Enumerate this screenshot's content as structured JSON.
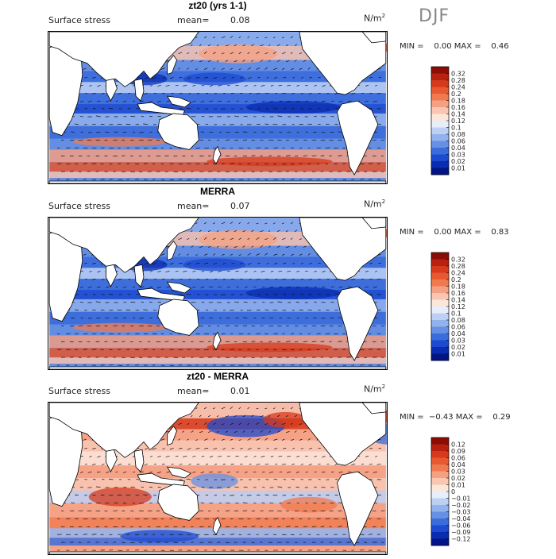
{
  "season": "DJF",
  "field_label": "Surface stress",
  "units": "N/m",
  "units_exp": "2",
  "mean_label": "mean=",
  "panels": [
    {
      "title": "zt20 (yrs 1-1)",
      "mean": "0.08",
      "minmax": "MIN =    0.00 MAX =    0.46",
      "colorbar": [
        "0.32",
        "0.28",
        "0.24",
        "0.2",
        "0.18",
        "0.16",
        "0.14",
        "0.12",
        "0.1",
        "0.08",
        "0.06",
        "0.04",
        "0.03",
        "0.02",
        "0.01"
      ],
      "colorbar_colors": [
        "#8c0c06",
        "#b8200f",
        "#d6391c",
        "#e8592f",
        "#f07a4f",
        "#f5a082",
        "#f9c6b1",
        "#fbe6da",
        "#e7eefa",
        "#bcd0f4",
        "#92b2ec",
        "#6690e3",
        "#3b6cdb",
        "#1c4ad0",
        "#0a2cb0",
        "#031486"
      ],
      "map_base": "#5a83e0",
      "variant": "model"
    },
    {
      "title": "MERRA",
      "mean": "0.07",
      "minmax": "MIN =    0.00 MAX =    0.83",
      "colorbar": [
        "0.32",
        "0.28",
        "0.24",
        "0.2",
        "0.18",
        "0.16",
        "0.14",
        "0.12",
        "0.1",
        "0.08",
        "0.06",
        "0.04",
        "0.03",
        "0.02",
        "0.01"
      ],
      "colorbar_colors": [
        "#8c0c06",
        "#b8200f",
        "#d6391c",
        "#e8592f",
        "#f07a4f",
        "#f5a082",
        "#f9c6b1",
        "#fbe6da",
        "#e7eefa",
        "#bcd0f4",
        "#92b2ec",
        "#6690e3",
        "#3b6cdb",
        "#1c4ad0",
        "#0a2cb0",
        "#031486"
      ],
      "map_base": "#4d7ae0",
      "variant": "obs"
    },
    {
      "title": "zt20 - MERRA",
      "mean": "0.01",
      "minmax": "MIN =  −0.43 MAX =    0.29",
      "colorbar": [
        "0.12",
        "0.09",
        "0.06",
        "0.04",
        "0.03",
        "0.02",
        "0.01",
        "0",
        "−0.01",
        "−0.02",
        "−0.03",
        "−0.04",
        "−0.06",
        "−0.09",
        "−0.12"
      ],
      "colorbar_colors": [
        "#8c0c06",
        "#b8200f",
        "#d6391c",
        "#e8592f",
        "#f07a4f",
        "#f5a082",
        "#f9c6b1",
        "#fbe6da",
        "#e7eefa",
        "#bcd0f4",
        "#92b2ec",
        "#6690e3",
        "#3b6cdb",
        "#1c4ad0",
        "#0a2cb0",
        "#031486"
      ],
      "map_base": "#f4b09a",
      "variant": "diff"
    }
  ]
}
